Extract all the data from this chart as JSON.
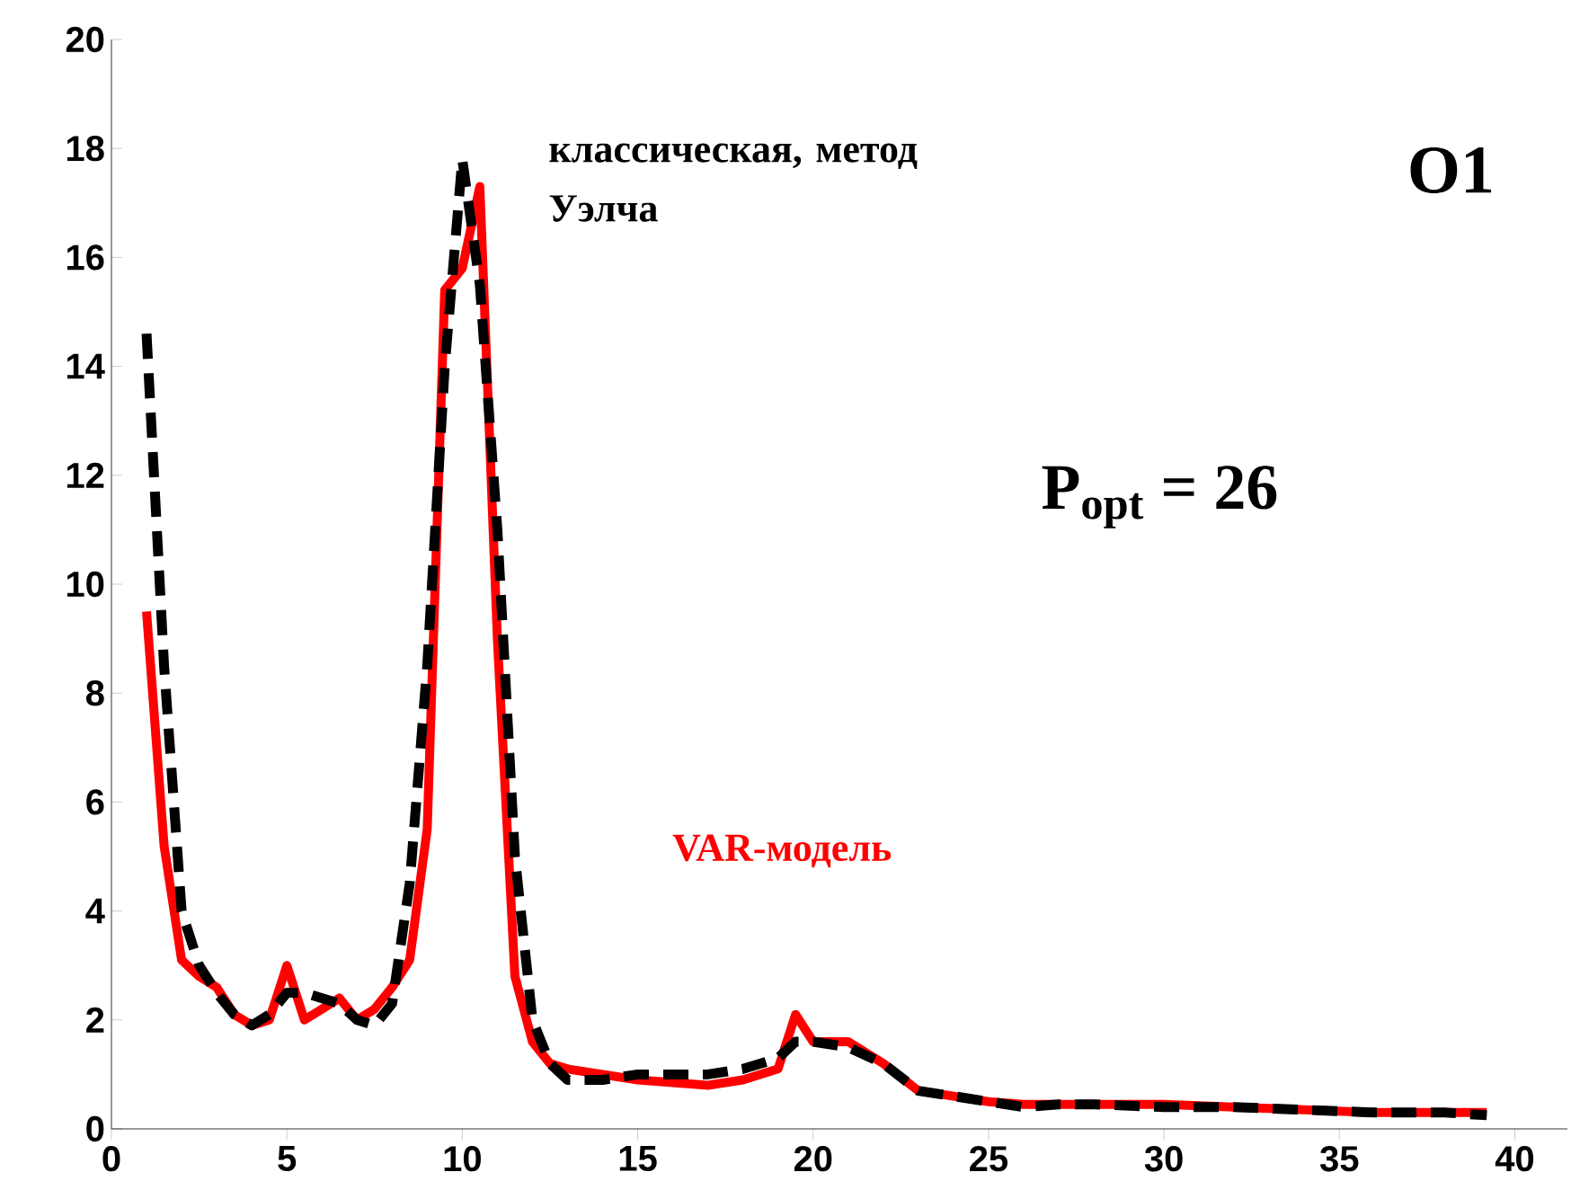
{
  "chart_data": {
    "type": "line",
    "xlim": [
      0,
      41.5
    ],
    "ylim": [
      0,
      20
    ],
    "xticks": [
      0,
      5,
      10,
      15,
      20,
      25,
      30,
      35,
      40
    ],
    "yticks": [
      0,
      2,
      4,
      6,
      8,
      10,
      12,
      14,
      16,
      18,
      20
    ],
    "annotations": [
      "O1",
      "P$_{opt}$ = 26"
    ],
    "series": [
      {
        "name": "VAR-модель",
        "color": "#ff0000",
        "line_style": "solid",
        "x": [
          1,
          1.5,
          2,
          2.5,
          3,
          3.5,
          4,
          4.5,
          5,
          5.5,
          6,
          6.5,
          7,
          7.5,
          8,
          8.5,
          9,
          9.5,
          10,
          10.5,
          11,
          11.5,
          12,
          12.5,
          13,
          14,
          15,
          16,
          17,
          18,
          19,
          19.5,
          20,
          21,
          22,
          23,
          24,
          25,
          26,
          27,
          28,
          30,
          32,
          34,
          36,
          38,
          39.2
        ],
        "values": [
          9.5,
          5.2,
          3.1,
          2.8,
          2.6,
          2.1,
          1.9,
          2.0,
          3.0,
          2.0,
          2.2,
          2.4,
          2.0,
          2.2,
          2.6,
          3.1,
          5.5,
          15.4,
          15.8,
          17.3,
          9.0,
          2.8,
          1.6,
          1.2,
          1.1,
          1.0,
          0.9,
          0.85,
          0.8,
          0.9,
          1.1,
          2.1,
          1.6,
          1.6,
          1.2,
          0.7,
          0.6,
          0.5,
          0.45,
          0.45,
          0.45,
          0.45,
          0.4,
          0.35,
          0.3,
          0.3,
          0.3
        ]
      },
      {
        "name": "классическая, метод Уэлча",
        "color": "#000000",
        "line_style": "dashed",
        "x": [
          1,
          1.5,
          2,
          2.5,
          3,
          3.5,
          4,
          4.5,
          5,
          5.5,
          6,
          6.5,
          7,
          7.5,
          8,
          8.5,
          9,
          9.5,
          10,
          10.5,
          11,
          11.5,
          12,
          12.5,
          13,
          14,
          15,
          16,
          17,
          18,
          19,
          19.5,
          20,
          21,
          22,
          23,
          24,
          25,
          26,
          27,
          28,
          30,
          32,
          34,
          36,
          38,
          39.2
        ],
        "values": [
          14.6,
          8.5,
          4.0,
          3.0,
          2.5,
          2.1,
          1.9,
          2.1,
          2.5,
          2.5,
          2.4,
          2.3,
          2.0,
          1.9,
          2.3,
          4.5,
          8.5,
          14.0,
          17.8,
          15.5,
          11.0,
          5.0,
          2.0,
          1.2,
          0.9,
          0.9,
          1.0,
          1.0,
          1.0,
          1.1,
          1.3,
          1.6,
          1.6,
          1.5,
          1.2,
          0.7,
          0.6,
          0.5,
          0.4,
          0.45,
          0.45,
          0.4,
          0.4,
          0.35,
          0.3,
          0.3,
          0.25
        ]
      }
    ]
  }
}
